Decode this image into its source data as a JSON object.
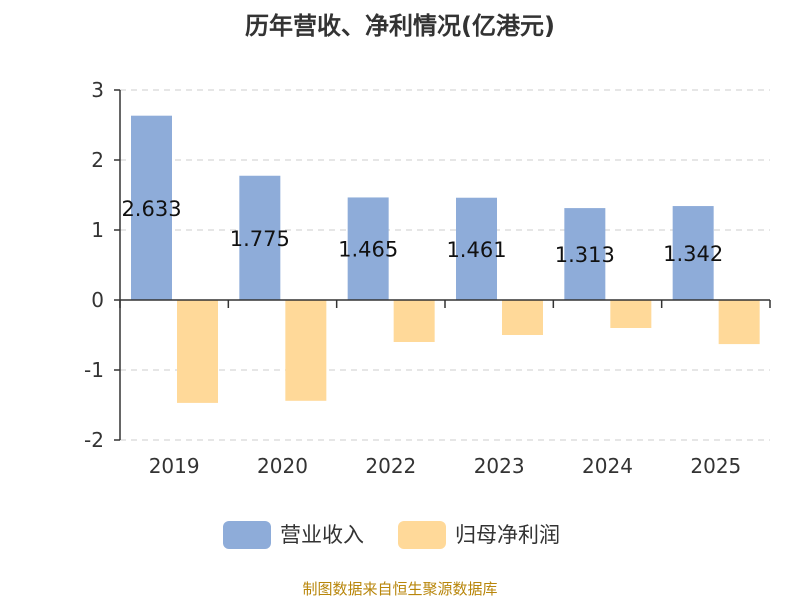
{
  "chart_data": {
    "type": "bar",
    "title": "历年营收、净利情况(亿港元)",
    "categories": [
      "2019",
      "2020",
      "2022",
      "2023",
      "2024",
      "2025"
    ],
    "series": [
      {
        "name": "营业收入",
        "color": "#8eacd9",
        "values": [
          2.633,
          1.775,
          1.465,
          1.461,
          1.313,
          1.342
        ],
        "labels": [
          "2.633",
          "1.775",
          "1.465",
          "1.461",
          "1.313",
          "1.342"
        ]
      },
      {
        "name": "归母净利润",
        "color": "#ffd999",
        "values": [
          -1.47,
          -1.44,
          -0.6,
          -0.5,
          -0.4,
          -0.63
        ]
      }
    ],
    "y_ticks": [
      "3",
      "2",
      "1",
      "0",
      "-1",
      "-2"
    ],
    "ylim": [
      -2,
      3
    ],
    "grid": true,
    "legend_position": "bottom"
  },
  "source": "制图数据来自恒生聚源数据库"
}
